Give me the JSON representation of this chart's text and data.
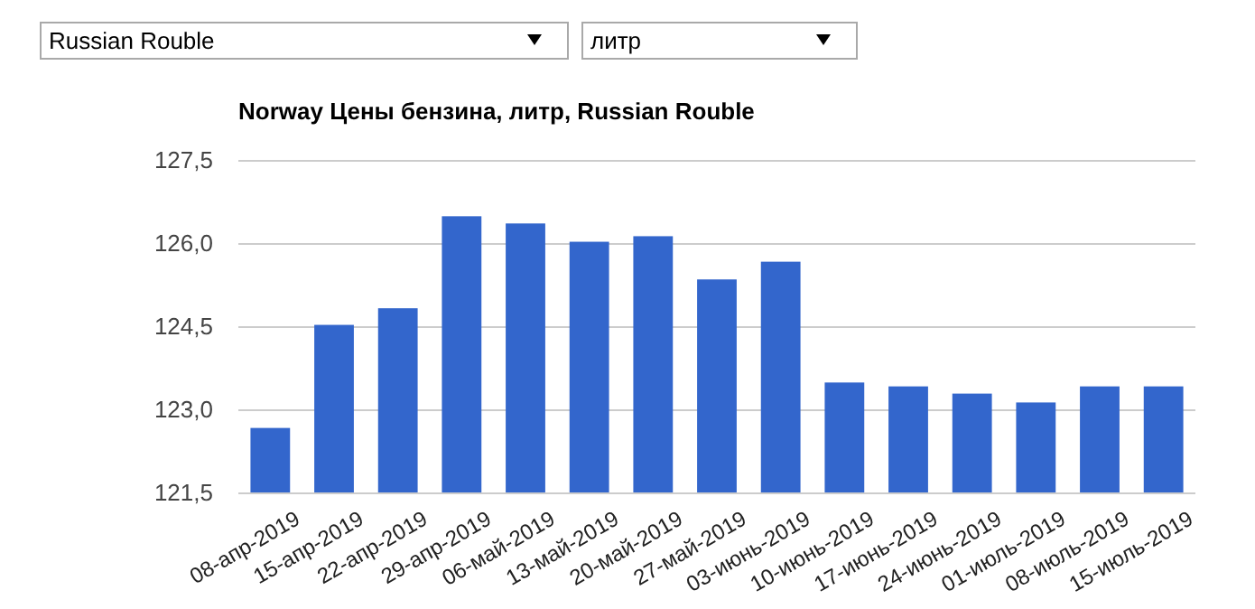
{
  "chart_data": {
    "type": "bar",
    "title": "Norway Цены бензина, литр, Russian Rouble",
    "annotations": [
      "Russian Rouble",
      "литр"
    ],
    "categories": [
      "08-апр-2019",
      "15-апр-2019",
      "22-апр-2019",
      "29-апр-2019",
      "06-май-2019",
      "13-май-2019",
      "20-май-2019",
      "27-май-2019",
      "03-июнь-2019",
      "10-июнь-2019",
      "17-июнь-2019",
      "24-июнь-2019",
      "01-июль-2019",
      "08-июль-2019",
      "15-июль-2019"
    ],
    "values": [
      122.68,
      124.54,
      124.84,
      126.5,
      126.37,
      126.04,
      126.14,
      125.36,
      125.68,
      123.5,
      123.43,
      123.3,
      123.14,
      123.43,
      123.43
    ],
    "color": "#3366cc",
    "ylim": [
      121.5,
      127.5
    ],
    "yticks": [
      {
        "value": 121.5,
        "label": "121,5"
      },
      {
        "value": 123,
        "label": "123,0"
      },
      {
        "value": 124.5,
        "label": "124,5"
      },
      {
        "value": 126,
        "label": "126,0"
      },
      {
        "value": 127.5,
        "label": "127,5"
      }
    ],
    "grid": "y"
  }
}
